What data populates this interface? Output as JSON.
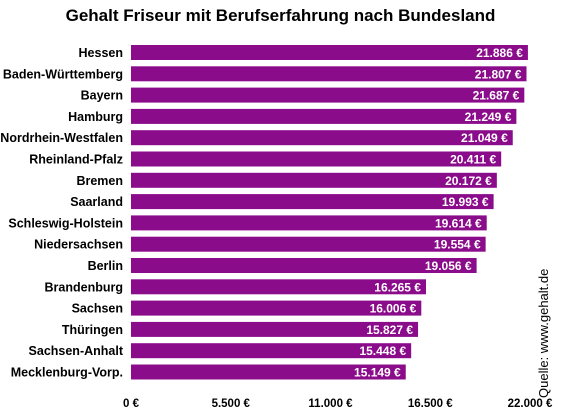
{
  "chart_data": {
    "type": "bar",
    "orientation": "horizontal",
    "title": "Gehalt Friseur mit Berufserfahrung nach Bundesland",
    "categories": [
      "Hessen",
      "Baden-Württemberg",
      "Bayern",
      "Hamburg",
      "Nordrhein-Westfalen",
      "Rheinland-Pfalz",
      "Bremen",
      "Saarland",
      "Schleswig-Holstein",
      "Niedersachsen",
      "Berlin",
      "Brandenburg",
      "Sachsen",
      "Thüringen",
      "Sachsen-Anhalt",
      "Mecklenburg-Vorp."
    ],
    "values": [
      21886,
      21807,
      21687,
      21249,
      21049,
      20411,
      20172,
      19993,
      19614,
      19554,
      19056,
      16265,
      16006,
      15827,
      15448,
      15149
    ],
    "value_labels": [
      "21.886 €",
      "21.807 €",
      "21.687 €",
      "21.249 €",
      "21.049 €",
      "20.411 €",
      "20.172 €",
      "19.993 €",
      "19.614 €",
      "19.554 €",
      "19.056 €",
      "16.265 €",
      "16.006 €",
      "15.827 €",
      "15.448 €",
      "15.149 €"
    ],
    "xlim": [
      0,
      22000
    ],
    "x_ticks": [
      0,
      5500,
      11000,
      16500,
      22000
    ],
    "x_tick_labels": [
      "0 €",
      "5.500 €",
      "11.000 €",
      "16.500 €",
      "22.000 €"
    ],
    "grid": false,
    "bar_color": "#8B0C8B",
    "source": "Quelle: www.gehalt.de"
  }
}
